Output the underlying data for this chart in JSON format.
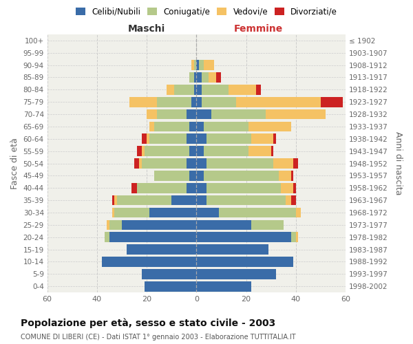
{
  "age_groups": [
    "0-4",
    "5-9",
    "10-14",
    "15-19",
    "20-24",
    "25-29",
    "30-34",
    "35-39",
    "40-44",
    "45-49",
    "50-54",
    "55-59",
    "60-64",
    "65-69",
    "70-74",
    "75-79",
    "80-84",
    "85-89",
    "90-94",
    "95-99",
    "100+"
  ],
  "birth_years": [
    "1998-2002",
    "1993-1997",
    "1988-1992",
    "1983-1987",
    "1978-1982",
    "1973-1977",
    "1968-1972",
    "1963-1967",
    "1958-1962",
    "1953-1957",
    "1948-1952",
    "1943-1947",
    "1938-1942",
    "1933-1937",
    "1928-1932",
    "1923-1927",
    "1918-1922",
    "1913-1917",
    "1908-1912",
    "1903-1907",
    "≤ 1902"
  ],
  "colors": {
    "celibi": "#3a6ca8",
    "coniugati": "#b5c98a",
    "vedovi": "#f5c264",
    "divorziati": "#cc2222"
  },
  "maschi": {
    "celibi": [
      21,
      22,
      38,
      28,
      35,
      30,
      19,
      10,
      4,
      3,
      4,
      3,
      4,
      3,
      4,
      2,
      1,
      1,
      0,
      0,
      0
    ],
    "coniugati": [
      0,
      0,
      0,
      0,
      2,
      5,
      14,
      22,
      20,
      14,
      18,
      18,
      15,
      14,
      12,
      14,
      8,
      2,
      1,
      0,
      0
    ],
    "vedovi": [
      0,
      0,
      0,
      0,
      0,
      1,
      1,
      1,
      0,
      0,
      1,
      1,
      1,
      2,
      4,
      11,
      3,
      0,
      1,
      0,
      0
    ],
    "divorziati": [
      0,
      0,
      0,
      0,
      0,
      0,
      0,
      1,
      2,
      0,
      2,
      2,
      2,
      0,
      0,
      0,
      0,
      0,
      0,
      0,
      0
    ]
  },
  "femmine": {
    "celibi": [
      22,
      32,
      39,
      29,
      38,
      22,
      9,
      4,
      4,
      3,
      4,
      3,
      4,
      3,
      6,
      2,
      2,
      2,
      1,
      0,
      0
    ],
    "coniugati": [
      0,
      0,
      0,
      0,
      2,
      13,
      31,
      32,
      30,
      30,
      27,
      18,
      18,
      18,
      22,
      14,
      11,
      3,
      2,
      0,
      0
    ],
    "vedovi": [
      0,
      0,
      0,
      0,
      1,
      0,
      2,
      2,
      5,
      5,
      8,
      9,
      9,
      17,
      24,
      34,
      11,
      3,
      4,
      0,
      0
    ],
    "divorziati": [
      0,
      0,
      0,
      0,
      0,
      0,
      0,
      2,
      1,
      1,
      2,
      1,
      1,
      0,
      0,
      9,
      2,
      2,
      0,
      0,
      0
    ]
  },
  "title": "Popolazione per età, sesso e stato civile - 2003",
  "subtitle": "COMUNE DI LIBERI (CE) - Dati ISTAT 1° gennaio 2003 - Elaborazione TUTTITALIA.IT",
  "ylabel_left": "Fasce di età",
  "ylabel_right": "Anni di nascita",
  "xlabel_left": "Maschi",
  "xlabel_right": "Femmine",
  "xlim": 60,
  "legend_labels": [
    "Celibi/Nubili",
    "Coniugati/e",
    "Vedovi/e",
    "Divorziati/e"
  ],
  "bg_color": "#f0f0ea",
  "grid_color": "#cccccc"
}
